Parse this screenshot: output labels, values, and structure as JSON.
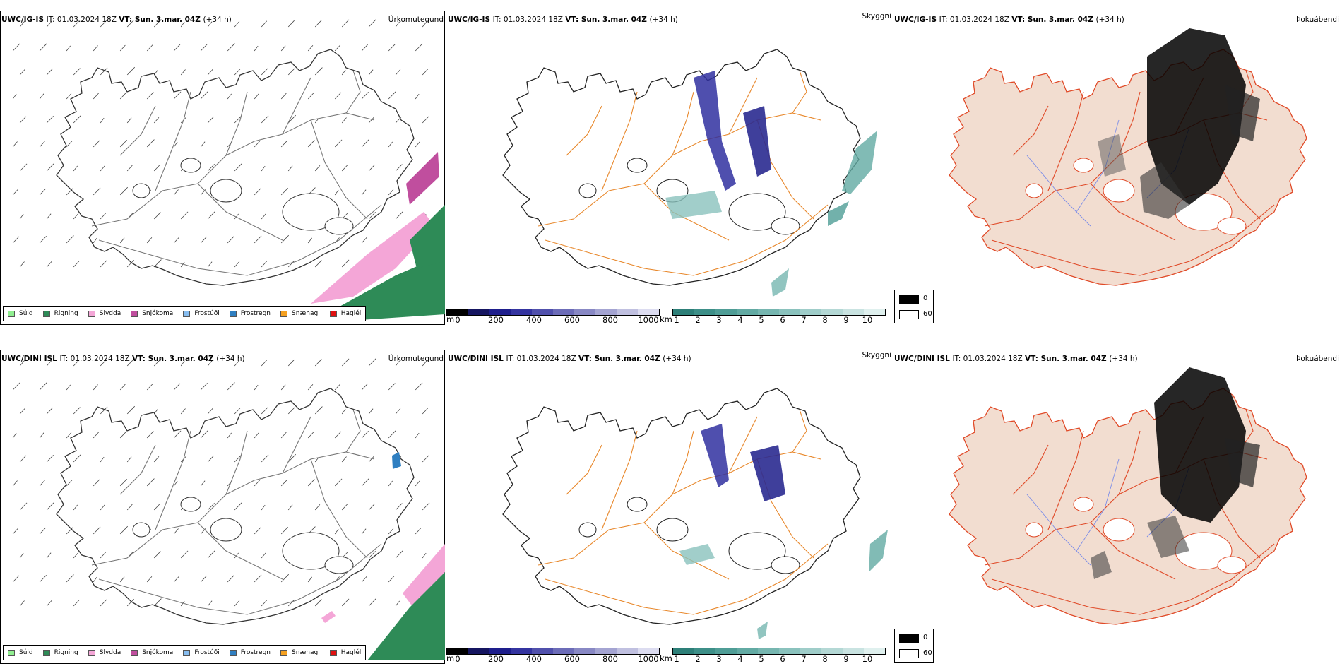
{
  "rows": [
    {
      "model": "UWC/IG-IS",
      "it_label": "IT:",
      "it_value": "01.03.2024 18Z",
      "vt_label": "VT:",
      "vt_value": "Sun. 3.mar. 04Z",
      "lead": "(+34 h)"
    },
    {
      "model": "UWC/DINI ISL",
      "it_label": "IT:",
      "it_value": "01.03.2024 18Z",
      "vt_label": "VT:",
      "vt_value": "Sun. 3.mar. 04Z",
      "lead": "(+34 h)"
    }
  ],
  "panel_titles": {
    "precip_type": "Úrkomutegund",
    "visibility": "Skyggni",
    "fog_index": "Þokuábendi"
  },
  "precip_legend": [
    {
      "label": "Súld",
      "color": "#90ee90"
    },
    {
      "label": "Rigning",
      "color": "#2e8b57"
    },
    {
      "label": "Slydda",
      "color": "#f4a6d7"
    },
    {
      "label": "Snjókoma",
      "color": "#c04e9e"
    },
    {
      "label": "Frostúði",
      "color": "#87bdf0"
    },
    {
      "label": "Frostregn",
      "color": "#2f7fc1"
    },
    {
      "label": "Snæhagl",
      "color": "#f4a020"
    },
    {
      "label": "Haglél",
      "color": "#e01010"
    }
  ],
  "visibility_m": {
    "unit": "m",
    "ticks": [
      "0",
      "200",
      "400",
      "600",
      "800",
      "1000"
    ],
    "colors": [
      "#000000",
      "#151560",
      "#1e1e8c",
      "#3434a0",
      "#5050ac",
      "#6c6cb8",
      "#8888c4",
      "#a4a4d2",
      "#c0c0e0",
      "#dcdcf0"
    ]
  },
  "visibility_km": {
    "unit": "km",
    "ticks": [
      "1",
      "2",
      "3",
      "4",
      "5",
      "6",
      "7",
      "8",
      "9",
      "10"
    ],
    "colors": [
      "#2d7f78",
      "#3d8f88",
      "#4f9d96",
      "#62aaa3",
      "#76b6b0",
      "#8ac2bd",
      "#9fcdc9",
      "#b4d8d5",
      "#c9e3e1",
      "#dff0ee"
    ]
  },
  "fog_legend": [
    {
      "value": "0",
      "color": "#000000"
    },
    {
      "value": "60",
      "color": "#ffffff"
    }
  ],
  "colors": {
    "rain": "#2e8b57",
    "sleet": "#f4a6d7",
    "snow": "#c04e9e",
    "road_orange": "#e8882c",
    "road_red": "#e04a28",
    "land_fog": "#f2ddd0",
    "river_blue": "#7b8ce8"
  }
}
